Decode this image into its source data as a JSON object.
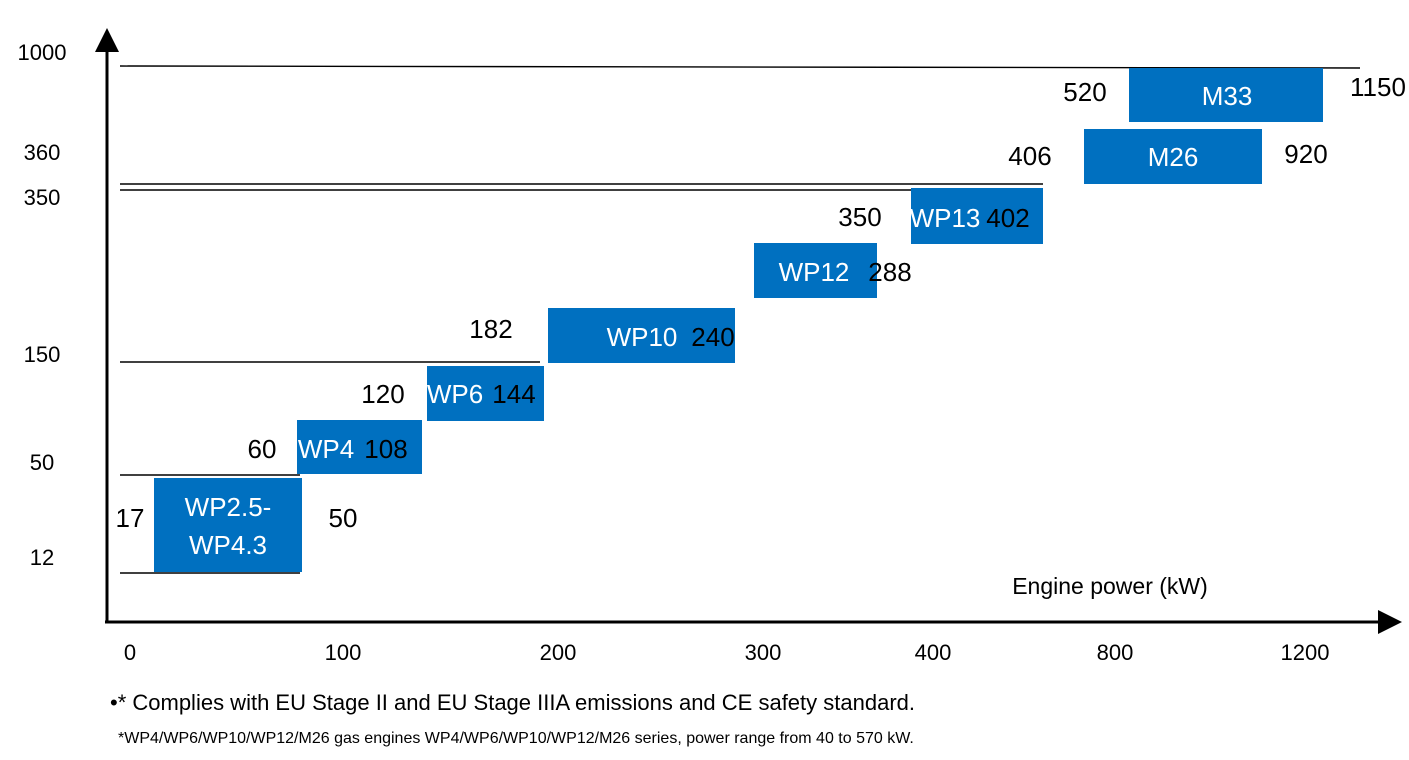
{
  "chart_data": {
    "type": "bar",
    "xlabel": "Engine power (kW)",
    "x_ticks": [
      "0",
      "100",
      "200",
      "300",
      "400",
      "800",
      "1200"
    ],
    "y_ticks": [
      "1000",
      "360",
      "350",
      "150",
      "50",
      "12"
    ],
    "bars": [
      {
        "label": "WP2.5-\nWP4.3",
        "min_label": "17",
        "max_label": "50"
      },
      {
        "label": "WP4",
        "min_label": "60",
        "max_label": "108"
      },
      {
        "label": "WP6",
        "min_label": "120",
        "max_label": "144"
      },
      {
        "label": "WP10",
        "min_label": "182",
        "max_label": "240"
      },
      {
        "label": "WP12",
        "min_label": "",
        "max_label": "288"
      },
      {
        "label": "WP13",
        "min_label": "350",
        "max_label": "402"
      },
      {
        "label": "M26",
        "min_label": "406",
        "max_label": "920"
      },
      {
        "label": "M33",
        "min_label": "520",
        "max_label": "1150"
      }
    ],
    "bar_color": "#0070C0",
    "grid": false
  },
  "footnotes": {
    "line1": "•* Complies with EU Stage II and EU Stage IIIA emissions and CE safety standard.",
    "line2": "*WP4/WP6/WP10/WP12/M26 gas engines WP4/WP6/WP10/WP12/M26 series, power range from 40 to 570 kW."
  }
}
